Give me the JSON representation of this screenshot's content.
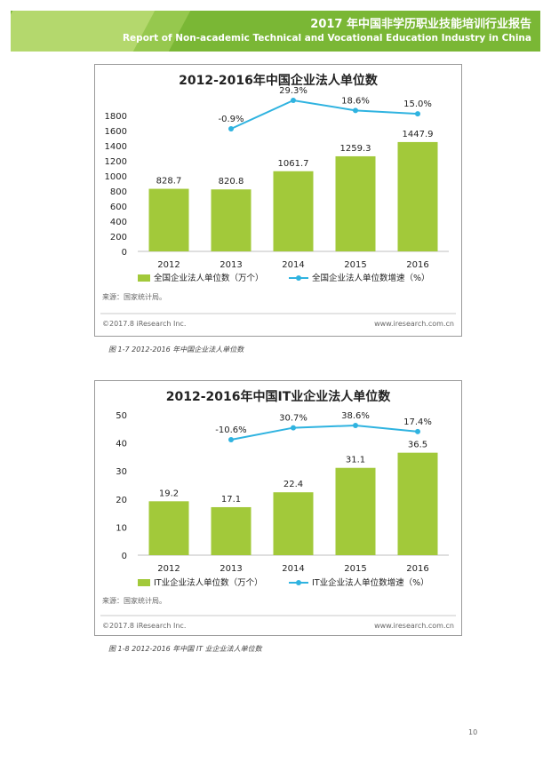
{
  "header": {
    "title_cn": "2017 年中国非学历职业技能培训行业报告",
    "title_en": "Report of Non-academic Technical and Vocational Education Industry in China"
  },
  "colors": {
    "bar": "#a2c93a",
    "line": "#2fb3e0",
    "banner": "#7ab735"
  },
  "chart_data": [
    {
      "type": "bar",
      "title": "2012-2016年中国企业法人单位数",
      "categories": [
        "2012",
        "2013",
        "2014",
        "2015",
        "2016"
      ],
      "series": [
        {
          "name": "全国企业法人单位数（万个）",
          "type": "bar",
          "values": [
            828.7,
            820.8,
            1061.7,
            1259.3,
            1447.9
          ],
          "labels": [
            "828.7",
            "820.8",
            "1061.7",
            "1259.3",
            "1447.9"
          ]
        },
        {
          "name": "全国企业法人单位数增速（%）",
          "type": "line",
          "values": [
            null,
            -0.9,
            29.3,
            18.6,
            15.0
          ],
          "labels": [
            "",
            "-0.9%",
            "29.3%",
            "18.6%",
            "15.0%"
          ]
        }
      ],
      "y_ticks": [
        "0",
        "200",
        "400",
        "600",
        "800",
        "1000",
        "1200",
        "1400",
        "1600",
        "1800"
      ],
      "ylim": [
        0,
        1800
      ],
      "grid": false,
      "legend": "bottom",
      "source": "来源：国家统计局。",
      "copyright": "©2017.8 iResearch Inc.",
      "website": "www.iresearch.com.cn"
    },
    {
      "type": "bar",
      "title": "2012-2016年中国IT业企业法人单位数",
      "categories": [
        "2012",
        "2013",
        "2014",
        "2015",
        "2016"
      ],
      "series": [
        {
          "name": "IT业企业法人单位数（万个）",
          "type": "bar",
          "values": [
            19.2,
            17.1,
            22.4,
            31.1,
            36.5
          ],
          "labels": [
            "19.2",
            "17.1",
            "22.4",
            "31.1",
            "36.5"
          ]
        },
        {
          "name": "IT业企业法人单位数增速（%）",
          "type": "line",
          "values": [
            null,
            -10.6,
            30.7,
            38.6,
            17.4
          ],
          "labels": [
            "",
            "-10.6%",
            "30.7%",
            "38.6%",
            "17.4%"
          ]
        }
      ],
      "y_ticks": [
        "0",
        "10",
        "20",
        "30",
        "40",
        "50"
      ],
      "ylim": [
        0,
        50
      ],
      "grid": false,
      "legend": "bottom",
      "source": "来源：国家统计局。",
      "copyright": "©2017.8 iResearch Inc.",
      "website": "www.iresearch.com.cn"
    }
  ],
  "captions": [
    "图 1-7 2012-2016 年中国企业法人单位数",
    "图 1-8 2012-2016 年中国 IT 业企业法人单位数"
  ],
  "page_number": "10"
}
